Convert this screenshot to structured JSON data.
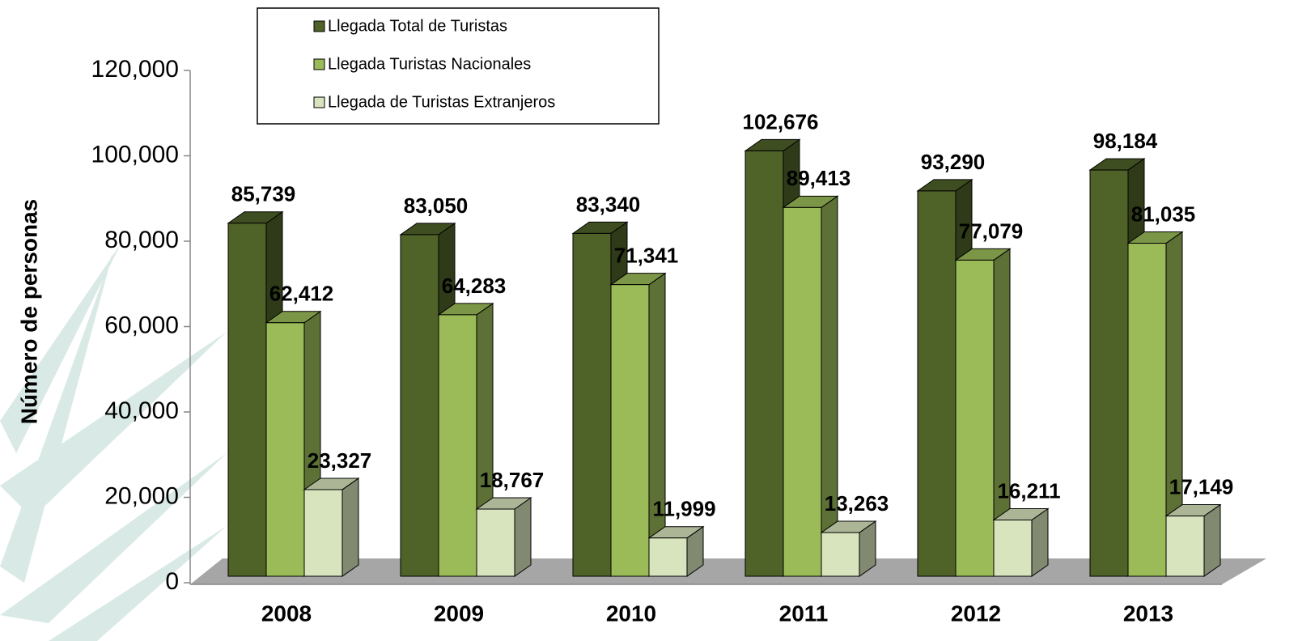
{
  "chart_data": {
    "type": "bar3d",
    "y_label": "Número de personas",
    "categories": [
      "2008",
      "2009",
      "2010",
      "2011",
      "2012",
      "2013"
    ],
    "series": [
      {
        "name": "Llegada Total de Turistas",
        "color": "#4f6228",
        "values": [
          85739,
          83050,
          83340,
          102676,
          93290,
          98184
        ],
        "value_labels": [
          "85,739",
          "83,050",
          "83,340",
          "102,676",
          "93,290",
          "98,184"
        ]
      },
      {
        "name": "Llegada Turistas Nacionales",
        "color": "#9bbb59",
        "values": [
          62412,
          64283,
          71341,
          89413,
          77079,
          81035
        ],
        "value_labels": [
          "62,412",
          "64,283",
          "71,341",
          "89,413",
          "77,079",
          "81,035"
        ]
      },
      {
        "name": "Llegada de Turistas Extranjeros",
        "color": "#d7e4bd",
        "values": [
          23327,
          18767,
          11999,
          13263,
          16211,
          17149
        ],
        "value_labels": [
          "23,327",
          "18,767",
          "11,999",
          "13,263",
          "16,211",
          "17,149"
        ]
      }
    ],
    "ylim": [
      0,
      120000
    ],
    "yticks": [
      0,
      {
        "value": 20000,
        "label": "20,000"
      },
      {
        "value": 40000,
        "label": "40,000"
      },
      {
        "value": 60000,
        "label": "60,000"
      },
      {
        "value": 80000,
        "label": "80,000"
      },
      {
        "value": 100000,
        "label": "100,000"
      },
      {
        "value": 120000,
        "label": "120,000"
      }
    ]
  }
}
